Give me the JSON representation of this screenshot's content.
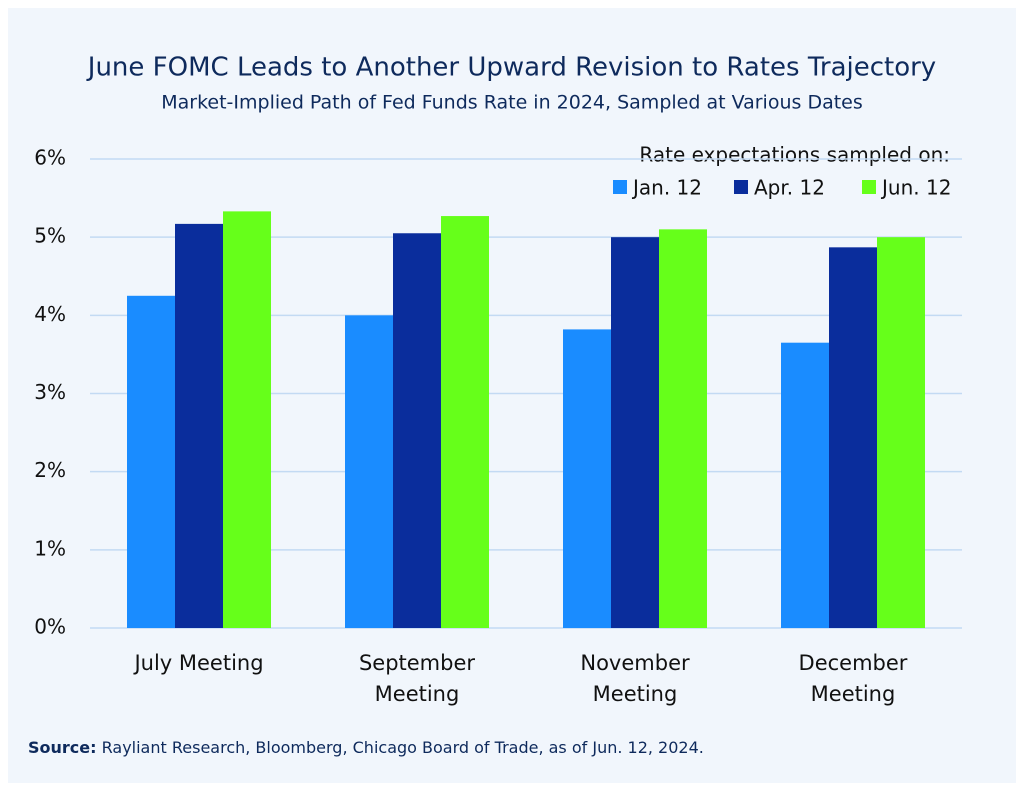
{
  "chart_data": {
    "type": "bar",
    "title": "June FOMC Leads to Another Upward Revision to Rates Trajectory",
    "subtitle": "Market-Implied Path of Fed Funds Rate in 2024, Sampled at Various Dates",
    "categories": [
      "July Meeting",
      "September Meeting",
      "November Meeting",
      "December Meeting"
    ],
    "series": [
      {
        "name": "Jan. 12",
        "color": "#1a8cff",
        "values": [
          4.25,
          4.0,
          3.82,
          3.65
        ]
      },
      {
        "name": "Apr. 12",
        "color": "#0a2d9c",
        "values": [
          5.17,
          5.05,
          5.0,
          4.87
        ]
      },
      {
        "name": "Jun. 12",
        "color": "#66ff1a",
        "values": [
          5.33,
          5.27,
          5.1,
          5.0
        ]
      }
    ],
    "legend_title": "Rate expectations sampled on:",
    "legend_position": "upper right",
    "ylim": [
      0,
      6
    ],
    "yticks": [
      {
        "value": 0,
        "label": "0%"
      },
      {
        "value": 1,
        "label": "1%"
      },
      {
        "value": 2,
        "label": "2%"
      },
      {
        "value": 3,
        "label": "3%"
      },
      {
        "value": 4,
        "label": "4%"
      },
      {
        "value": 5,
        "label": "5%"
      },
      {
        "value": 6,
        "label": "6%"
      }
    ],
    "grid": true,
    "source": {
      "label": "Source:",
      "text": "Rayliant Research, Bloomberg, Chicago Board of Trade, as of Jun. 12, 2024."
    }
  }
}
